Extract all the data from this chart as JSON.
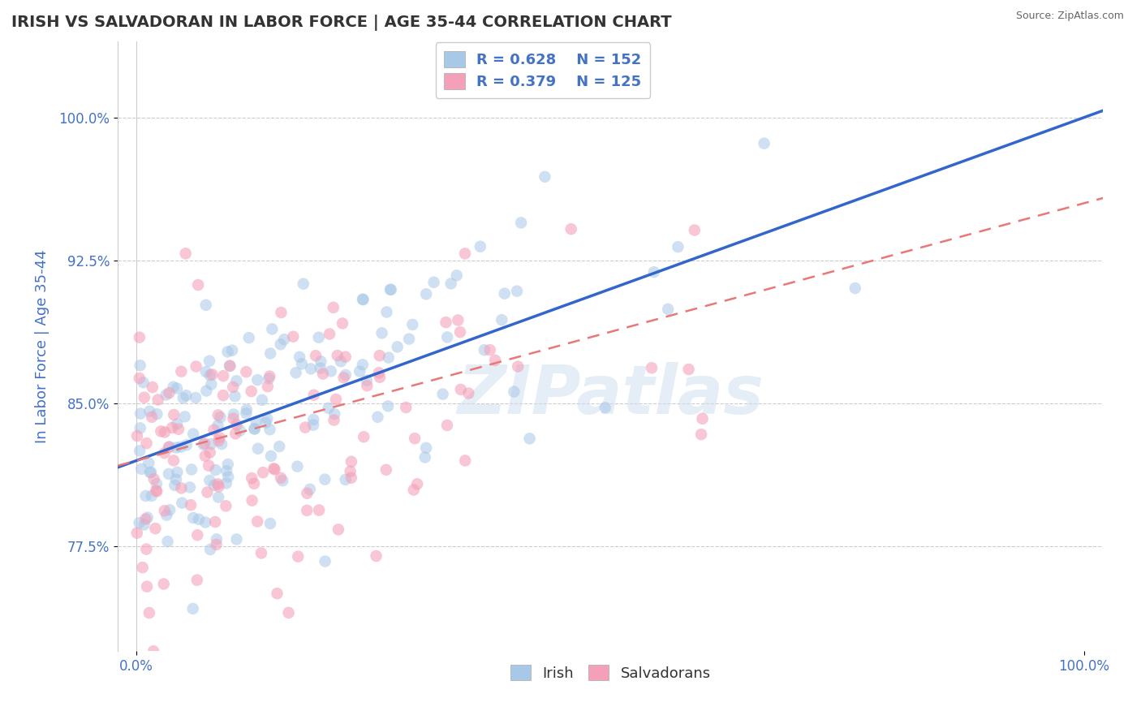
{
  "title": "IRISH VS SALVADORAN IN LABOR FORCE | AGE 35-44 CORRELATION CHART",
  "source": "Source: ZipAtlas.com",
  "ylabel": "In Labor Force | Age 35-44",
  "watermark": "ZIPatlas",
  "irish_R": 0.628,
  "irish_N": 152,
  "salvadoran_R": 0.379,
  "salvadoran_N": 125,
  "irish_color": "#a8c8e8",
  "salvadoran_color": "#f4a0b8",
  "irish_line_color": "#3366cc",
  "salvadoran_line_color": "#e87878",
  "background_color": "#ffffff",
  "grid_color": "#cccccc",
  "title_color": "#333333",
  "axis_label_color": "#4472c4",
  "legend_text_color": "#4472c4",
  "tick_label_color": "#4472c4",
  "yticks": [
    0.775,
    0.85,
    0.925,
    1.0
  ],
  "ytick_labels": [
    "77.5%",
    "85.0%",
    "92.5%",
    "100.0%"
  ],
  "xticks": [
    0.0,
    1.0
  ],
  "xtick_labels": [
    "0.0%",
    "100.0%"
  ],
  "xlim": [
    -0.02,
    1.02
  ],
  "ylim": [
    0.72,
    1.04
  ],
  "irish_line": {
    "x0": 0.0,
    "y0": 0.82,
    "x1": 1.0,
    "y1": 1.0
  },
  "salvadoran_line": {
    "x0": 0.0,
    "y0": 0.82,
    "x1": 1.0,
    "y1": 0.955
  }
}
